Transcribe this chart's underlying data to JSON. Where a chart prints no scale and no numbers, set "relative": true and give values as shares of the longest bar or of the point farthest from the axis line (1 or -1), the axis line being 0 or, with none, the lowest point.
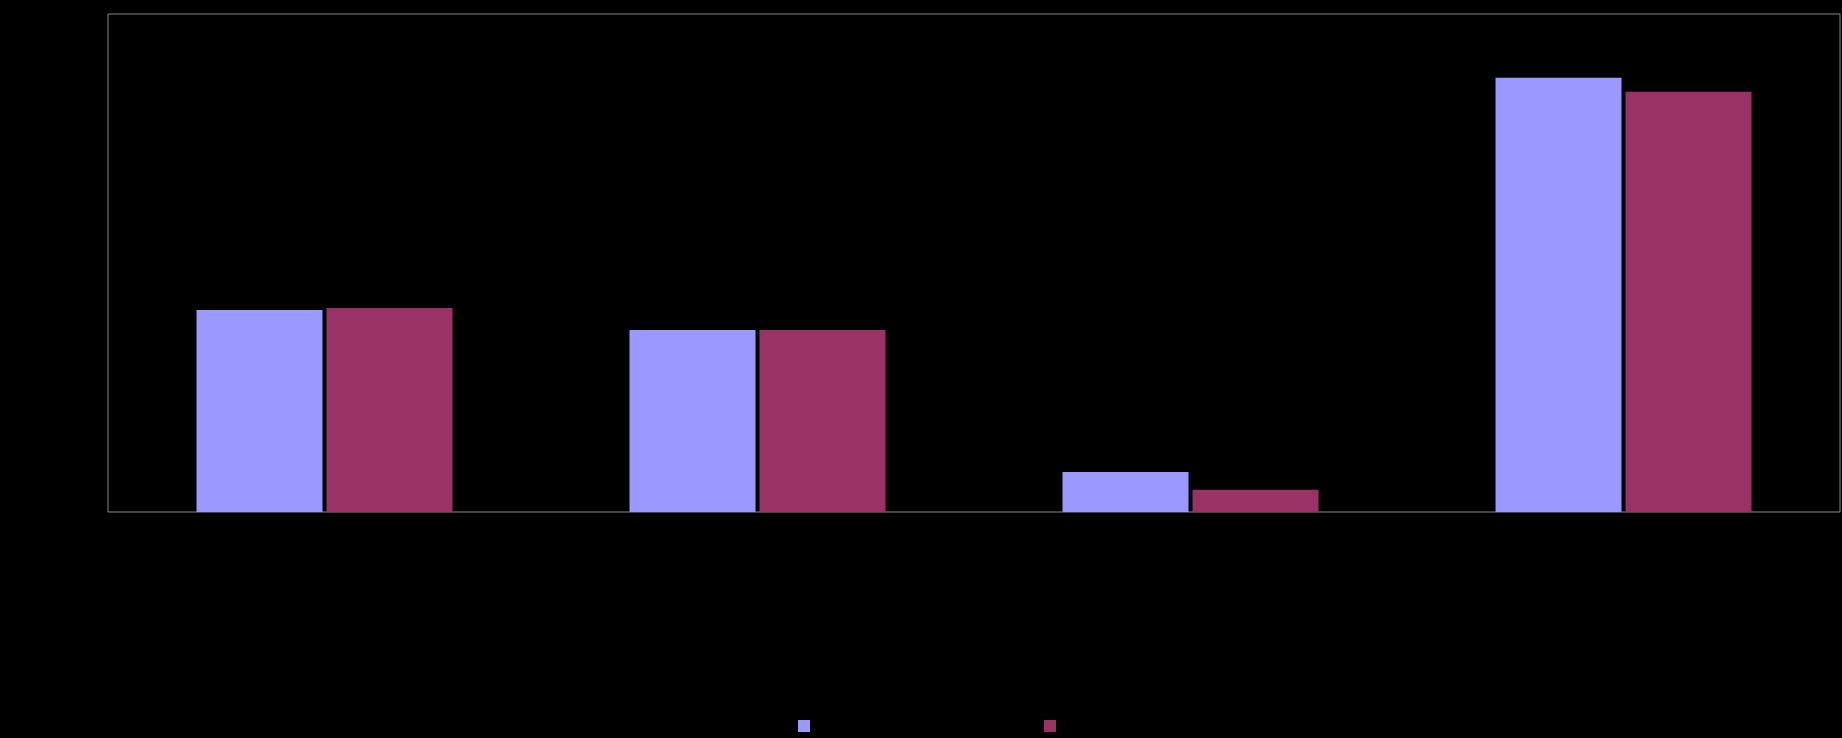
{
  "chart_data": {
    "type": "bar",
    "relative": true,
    "categories": [
      null,
      null,
      null,
      null
    ],
    "series": [
      {
        "color": "#9999ff",
        "values": [
          0.465,
          0.419,
          0.092,
          1
        ]
      },
      {
        "color": "#993366",
        "values": [
          0.47,
          0.419,
          0.051,
          0.968
        ]
      }
    ]
  }
}
